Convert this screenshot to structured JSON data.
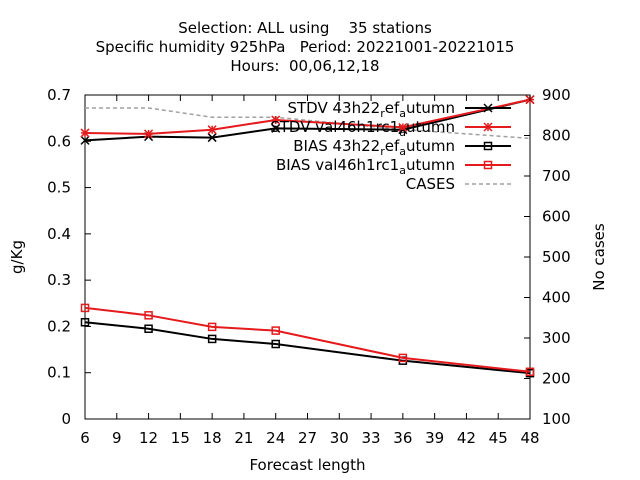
{
  "chart_data": {
    "type": "line",
    "title_lines": [
      "Selection: ALL using    35 stations",
      "Specific humidity 925hPa   Period: 20221001-20221015",
      "Hours:  00,06,12,18"
    ],
    "xlabel": "Forecast length",
    "ylabel": "g/Kg",
    "y2label": "No cases",
    "xlim": [
      6,
      48
    ],
    "ylim": [
      0,
      0.7
    ],
    "y2lim": [
      100,
      900
    ],
    "xticks": [
      6,
      9,
      12,
      15,
      18,
      21,
      24,
      27,
      30,
      33,
      36,
      39,
      42,
      45,
      48
    ],
    "yticks": [
      0,
      0.1,
      0.2,
      0.3,
      0.4,
      0.5,
      0.6,
      0.7
    ],
    "ytick_labels": [
      "0",
      "0.1",
      "0.2",
      "0.3",
      "0.4",
      "0.5",
      "0.6",
      "0.7"
    ],
    "y2ticks": [
      100,
      200,
      300,
      400,
      500,
      600,
      700,
      800,
      900
    ],
    "grid": false,
    "legend_position": "top-right",
    "x": [
      6,
      12,
      18,
      24,
      36,
      48
    ],
    "series": [
      {
        "name": "STDV 43h22_ref_autumn",
        "legend_main": "STDV 43h22",
        "legend_sub1": "r",
        "legend_mid": "ef",
        "legend_sub2": "a",
        "legend_tail": "utumn",
        "axis": "y",
        "color": "#000000",
        "marker": "cross",
        "values": [
          0.602,
          0.61,
          0.608,
          0.628,
          0.625,
          0.69
        ]
      },
      {
        "name": "STDV val46h1rc1_autumn",
        "legend_main": "STDV val46h1rc1",
        "legend_sub1": "",
        "legend_mid": "",
        "legend_sub2": "a",
        "legend_tail": "utumn",
        "axis": "y",
        "color": "#e41a1c",
        "marker": "star",
        "values": [
          0.618,
          0.616,
          0.625,
          0.646,
          0.63,
          0.69
        ]
      },
      {
        "name": "BIAS 43h22_ref_autumn",
        "legend_main": "BIAS 43h22",
        "legend_sub1": "r",
        "legend_mid": "ef",
        "legend_sub2": "a",
        "legend_tail": "utumn",
        "axis": "y",
        "color": "#000000",
        "marker": "square",
        "values": [
          0.209,
          0.195,
          0.173,
          0.162,
          0.126,
          0.099
        ]
      },
      {
        "name": "BIAS val46h1rc1_autumn",
        "legend_main": "BIAS val46h1rc1",
        "legend_sub1": "",
        "legend_mid": "",
        "legend_sub2": "a",
        "legend_tail": "utumn",
        "axis": "y",
        "color": "#e41a1c",
        "marker": "square",
        "values": [
          0.24,
          0.224,
          0.199,
          0.191,
          0.132,
          0.102
        ]
      },
      {
        "name": "CASES",
        "legend_main": "CASES",
        "legend_sub1": "",
        "legend_mid": "",
        "legend_sub2": "",
        "legend_tail": "",
        "axis": "y2",
        "color": "#a0a0a0",
        "marker": "none",
        "dashed": true,
        "values": [
          868,
          868,
          845,
          845,
          815,
          793
        ]
      }
    ]
  }
}
